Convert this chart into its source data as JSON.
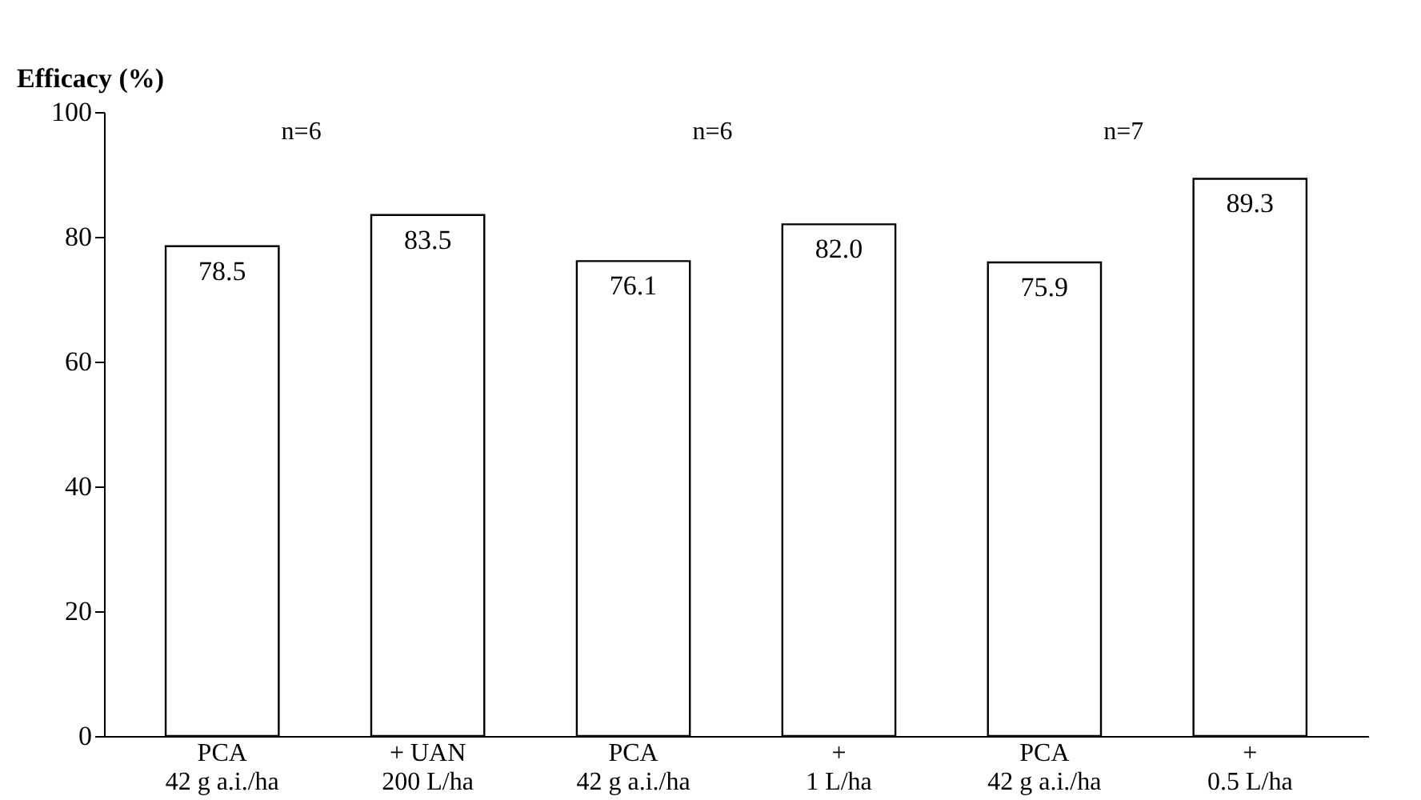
{
  "chart_data": {
    "type": "bar",
    "ylabel": "Efficacy (%)",
    "categories": [
      "PCA\n42 g a.i./ha",
      "+ UAN\n200 L/ha",
      "PCA\n42 g a.i./ha",
      "+\n1 L/ha",
      "PCA\n42 g a.i./ha",
      "+\n0.5 L/ha"
    ],
    "values": [
      78.5,
      83.5,
      76.1,
      82.0,
      75.9,
      89.3
    ],
    "value_labels": [
      "78.5",
      "83.5",
      "76.1",
      "82.0",
      "75.9",
      "89.3"
    ],
    "color": "#ffffff",
    "ylim": [
      0,
      100
    ],
    "yticks": [
      0,
      20,
      40,
      60,
      80,
      100
    ],
    "grid": false,
    "annotations": [
      "n=6",
      "n=6",
      "n=7"
    ]
  }
}
